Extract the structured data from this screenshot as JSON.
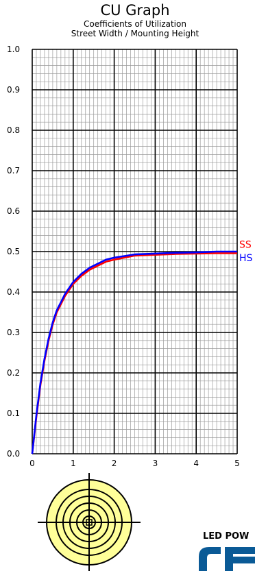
{
  "chart_data": {
    "type": "line",
    "title": "CU Graph",
    "subtitle_lines": [
      "Coefficients of Utilization",
      "Street Width / Mounting Height"
    ],
    "xlim": [
      0,
      5
    ],
    "ylim": [
      0,
      1.0
    ],
    "x_ticks": [
      "0",
      "1",
      "2",
      "3",
      "4",
      "5"
    ],
    "y_ticks": [
      "0.0",
      "0.1",
      "0.2",
      "0.3",
      "0.4",
      "0.5",
      "0.6",
      "0.7",
      "0.8",
      "0.9",
      "1.0"
    ],
    "grid": true,
    "series": [
      {
        "name": "SS",
        "color": "#ff0000",
        "x": [
          0,
          0.1,
          0.2,
          0.3,
          0.4,
          0.5,
          0.6,
          0.7,
          0.8,
          0.9,
          1.0,
          1.2,
          1.4,
          1.6,
          1.8,
          2.0,
          2.5,
          3.0,
          3.5,
          4.0,
          4.5,
          5.0
        ],
        "y": [
          0,
          0.09,
          0.17,
          0.23,
          0.28,
          0.32,
          0.35,
          0.37,
          0.39,
          0.405,
          0.42,
          0.44,
          0.455,
          0.465,
          0.475,
          0.48,
          0.49,
          0.492,
          0.494,
          0.495,
          0.496,
          0.496
        ]
      },
      {
        "name": "HS",
        "color": "#0000ff",
        "x": [
          0,
          0.1,
          0.2,
          0.3,
          0.4,
          0.5,
          0.6,
          0.7,
          0.8,
          0.9,
          1.0,
          1.2,
          1.4,
          1.6,
          1.8,
          2.0,
          2.5,
          3.0,
          3.5,
          4.0,
          4.5,
          5.0
        ],
        "y": [
          0,
          0.095,
          0.175,
          0.235,
          0.285,
          0.325,
          0.355,
          0.375,
          0.395,
          0.41,
          0.425,
          0.445,
          0.46,
          0.47,
          0.48,
          0.485,
          0.493,
          0.495,
          0.497,
          0.498,
          0.5,
          0.5
        ]
      }
    ]
  },
  "brand": {
    "text": "LED POW",
    "logo_color": "#0a5a96"
  },
  "icons": {
    "target": "target-diagram-icon",
    "target_fill": "#ffff99"
  }
}
